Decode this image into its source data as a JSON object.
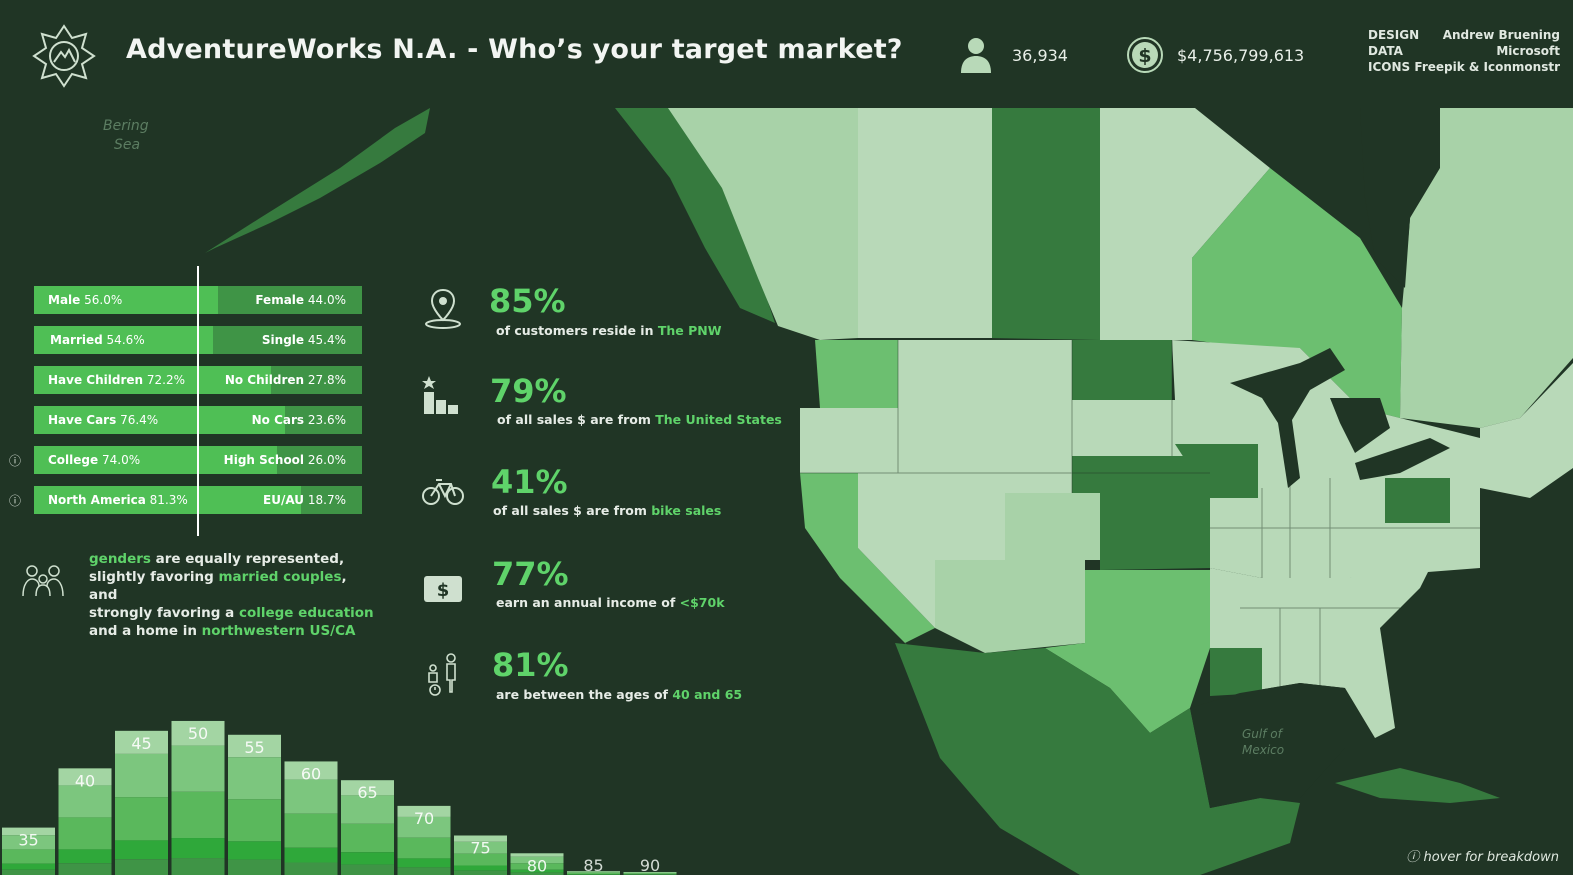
{
  "header": {
    "title": "AdventureWorks N.A. - Who’s your target market?",
    "customers": "36,934",
    "sales": "$4,756,799,613",
    "credits": [
      {
        "label": "DESIGN",
        "value": "Andrew Bruening"
      },
      {
        "label": "DATA",
        "value": "Microsoft"
      },
      {
        "label": "ICONS",
        "value": "Freepik & Iconmonstr"
      }
    ]
  },
  "demographics": [
    {
      "left_label": "Male",
      "left_value": "56.0%",
      "right_label": "Female",
      "right_value": "44.0%",
      "left_pct": 56.0,
      "info": false
    },
    {
      "left_label": "Married",
      "left_value": "54.6%",
      "right_label": "Single",
      "right_value": "45.4%",
      "left_pct": 54.6,
      "info": false
    },
    {
      "left_label": "Have Children",
      "left_value": "72.2%",
      "right_label": "No Children",
      "right_value": "27.8%",
      "left_pct": 72.2,
      "info": false
    },
    {
      "left_label": "Have Cars",
      "left_value": "76.4%",
      "right_label": "No Cars",
      "right_value": "23.6%",
      "left_pct": 76.4,
      "info": false
    },
    {
      "left_label": "College",
      "left_value": "74.0%",
      "right_label": "High School",
      "right_value": "26.0%",
      "left_pct": 74.0,
      "info": true
    },
    {
      "left_label": "North America",
      "left_value": "81.3%",
      "right_label": "EU/AU",
      "right_value": "18.7%",
      "left_pct": 81.3,
      "info": true
    }
  ],
  "summary": {
    "s1": "genders",
    "s2": " are equally represented,",
    "s3": "slightly favoring ",
    "s4": "married couples",
    "s5": ", and",
    "s6": "strongly favoring a ",
    "s7": "college education",
    "s8": "and a home in ",
    "s9": "northwestern US/CA"
  },
  "stats": [
    {
      "icon": "location-pin-icon",
      "pct": "85%",
      "text": "of customers reside in ",
      "highlight": "The PNW"
    },
    {
      "icon": "podium-icon",
      "pct": "79%",
      "text": "of all sales $ are from ",
      "highlight": "The United States"
    },
    {
      "icon": "bicycle-icon",
      "pct": "41%",
      "text": "of all sales $ are from ",
      "highlight": "bike sales"
    },
    {
      "icon": "money-icon",
      "pct": "77%",
      "text": "earn an annual income of  ",
      "highlight": "<$70k"
    },
    {
      "icon": "ages-icon",
      "pct": "81%",
      "text": "are between the ages of ",
      "highlight": "40 and 65"
    }
  ],
  "map": {
    "labels": {
      "bering_1": "Bering",
      "bering_2": "Sea",
      "gulf_1": "Gulf of",
      "gulf_2": "Mexico"
    },
    "colors": {
      "dark": "#367a3e",
      "mid": "#6cbf70",
      "light": "#a8d2a8",
      "pale": "#b8d9b8",
      "water": "#203525"
    }
  },
  "chart_data": {
    "type": "bar",
    "categories": [
      "35",
      "40",
      "45",
      "50",
      "55",
      "60",
      "65",
      "70",
      "75",
      "80",
      "85",
      "90"
    ],
    "values": [
      48,
      108,
      146,
      156,
      142,
      115,
      96,
      70,
      40,
      22,
      4,
      3
    ],
    "ylim": [
      0,
      160
    ],
    "colors": [
      "#a3d5a3",
      "#7cc67e",
      "#5ab85c",
      "#2fa83a",
      "#3f9446"
    ]
  },
  "footer": {
    "hover_note": "hover for breakdown",
    "info_symbol": "ⓘ"
  }
}
